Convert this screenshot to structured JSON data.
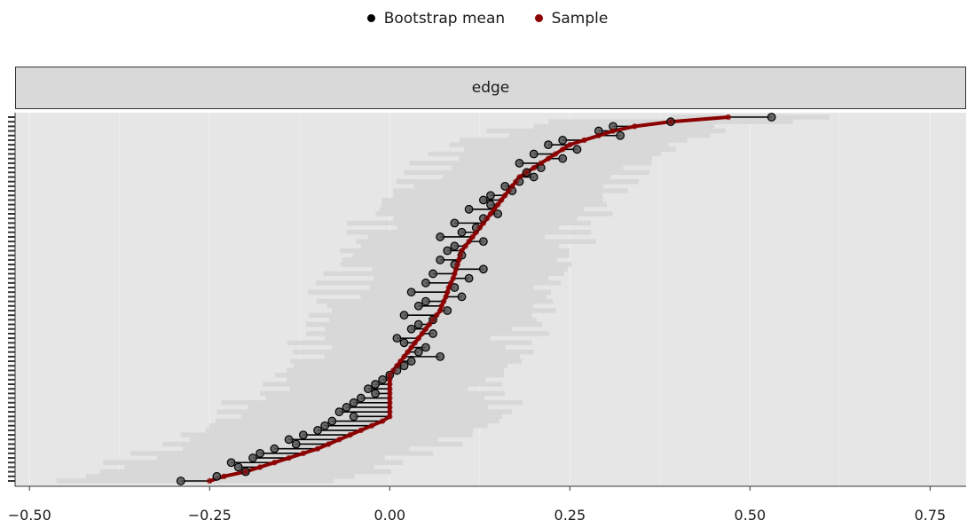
{
  "legend": {
    "items": [
      {
        "label": "Bootstrap mean",
        "color": "#000000"
      },
      {
        "label": "Sample",
        "color": "#8b0000"
      }
    ]
  },
  "chart_data": {
    "type": "line",
    "facet_label": "edge",
    "xlim": [
      -0.52,
      0.8
    ],
    "x_ticks": [
      -0.5,
      -0.25,
      0.0,
      0.25,
      0.5,
      0.75
    ],
    "x_tick_labels": [
      "−0.50",
      "−0.25",
      "0.00",
      "0.25",
      "0.50",
      "0.75"
    ],
    "grid": true,
    "legend_position": "top",
    "n_edges": 80,
    "colors": {
      "panel_bg": "#e6e6e6",
      "gridline": "#f2f2f2",
      "ci_band": "#d6d6d6",
      "bootstrap_mean": "#000000",
      "sample": "#8b0000"
    },
    "series": [
      {
        "name": "Sample",
        "values": [
          0.47,
          0.39,
          0.34,
          0.31,
          0.29,
          0.27,
          0.25,
          0.24,
          0.23,
          0.22,
          0.21,
          0.2,
          0.19,
          0.18,
          0.175,
          0.17,
          0.165,
          0.16,
          0.155,
          0.15,
          0.145,
          0.14,
          0.135,
          0.13,
          0.125,
          0.12,
          0.115,
          0.11,
          0.105,
          0.1,
          0.098,
          0.096,
          0.094,
          0.092,
          0.09,
          0.088,
          0.085,
          0.082,
          0.08,
          0.078,
          0.075,
          0.072,
          0.07,
          0.065,
          0.06,
          0.055,
          0.05,
          0.045,
          0.04,
          0.035,
          0.03,
          0.025,
          0.02,
          0.015,
          0.01,
          0.005,
          0.0,
          0.0,
          0.0,
          0.0,
          0.0,
          0.0,
          0.0,
          0.0,
          0.0,
          0.0,
          -0.01,
          -0.025,
          -0.04,
          -0.055,
          -0.07,
          -0.085,
          -0.1,
          -0.12,
          -0.14,
          -0.16,
          -0.18,
          -0.2,
          -0.23,
          -0.25
        ]
      },
      {
        "name": "Bootstrap mean",
        "values": [
          0.53,
          0.39,
          0.31,
          0.29,
          0.32,
          0.24,
          0.22,
          0.26,
          0.2,
          0.24,
          0.18,
          0.21,
          0.19,
          0.2,
          0.18,
          0.16,
          0.17,
          0.14,
          0.13,
          0.14,
          0.11,
          0.15,
          0.13,
          0.09,
          0.12,
          0.1,
          0.07,
          0.13,
          0.09,
          0.08,
          0.1,
          0.07,
          0.09,
          0.13,
          0.06,
          0.11,
          0.05,
          0.09,
          0.03,
          0.1,
          0.05,
          0.04,
          0.08,
          0.02,
          0.06,
          0.04,
          0.03,
          0.06,
          0.01,
          0.02,
          0.05,
          0.04,
          0.07,
          0.03,
          0.02,
          0.01,
          0.0,
          -0.01,
          -0.02,
          -0.03,
          -0.02,
          -0.04,
          -0.05,
          -0.06,
          -0.07,
          -0.05,
          -0.08,
          -0.09,
          -0.1,
          -0.12,
          -0.14,
          -0.13,
          -0.16,
          -0.18,
          -0.19,
          -0.22,
          -0.21,
          -0.2,
          -0.24,
          -0.29
        ]
      }
    ]
  }
}
